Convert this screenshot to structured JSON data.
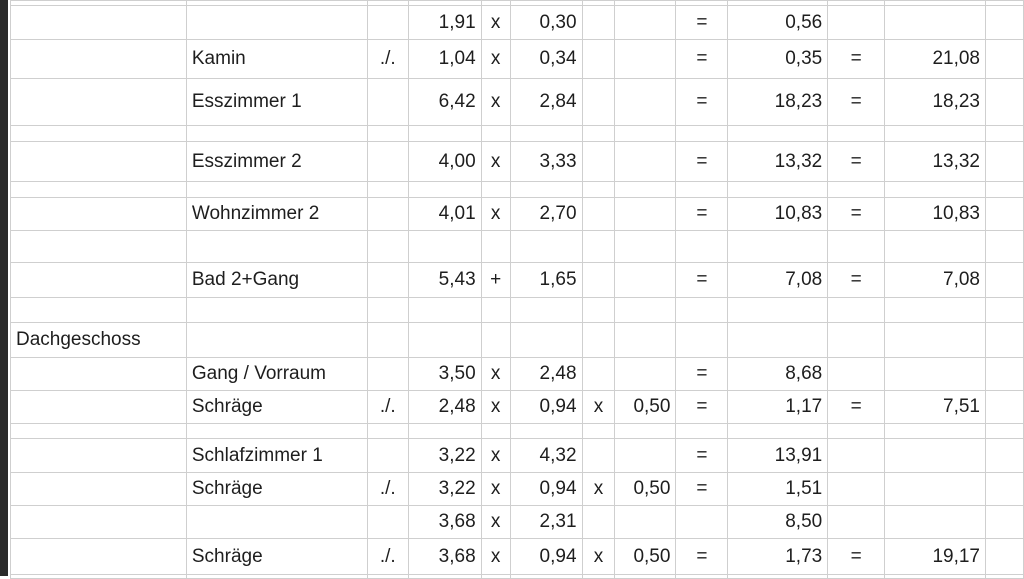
{
  "sheet": {
    "rows": [
      [
        "",
        "",
        "",
        "",
        "",
        "",
        "",
        "",
        "",
        "",
        "",
        "",
        ""
      ],
      [
        "",
        "",
        "",
        "1,91",
        "x",
        "0,30",
        "",
        "",
        "=",
        "0,56",
        "",
        "",
        ""
      ],
      [
        "",
        "Kamin",
        "./.",
        "1,04",
        "x",
        "0,34",
        "",
        "",
        "=",
        "0,35",
        "=",
        "21,08",
        ""
      ],
      [
        "",
        "Esszimmer 1",
        "",
        "6,42",
        "x",
        "2,84",
        "",
        "",
        "=",
        "18,23",
        "=",
        "18,23",
        ""
      ],
      [
        "",
        "",
        "",
        "",
        "",
        "",
        "",
        "",
        "",
        "",
        "",
        "",
        ""
      ],
      [
        "",
        "Esszimmer 2",
        "",
        "4,00",
        "x",
        "3,33",
        "",
        "",
        "=",
        "13,32",
        "=",
        "13,32",
        ""
      ],
      [
        "",
        "",
        "",
        "",
        "",
        "",
        "",
        "",
        "",
        "",
        "",
        "",
        ""
      ],
      [
        "",
        "Wohnzimmer 2",
        "",
        "4,01",
        "x",
        "2,70",
        "",
        "",
        "=",
        "10,83",
        "=",
        "10,83",
        ""
      ],
      [
        "",
        "",
        "",
        "",
        "",
        "",
        "",
        "",
        "",
        "",
        "",
        "",
        ""
      ],
      [
        "",
        "Bad 2+Gang",
        "",
        "5,43",
        "+",
        "1,65",
        "",
        "",
        "=",
        "7,08",
        "=",
        "7,08",
        ""
      ],
      [
        "",
        "",
        "",
        "",
        "",
        "",
        "",
        "",
        "",
        "",
        "",
        "",
        ""
      ],
      [
        "Dachgeschoss",
        "",
        "",
        "",
        "",
        "",
        "",
        "",
        "",
        "",
        "",
        "",
        ""
      ],
      [
        "",
        "Gang / Vorraum",
        "",
        "3,50",
        "x",
        "2,48",
        "",
        "",
        "=",
        "8,68",
        "",
        "",
        ""
      ],
      [
        "",
        "Schräge",
        "./.",
        "2,48",
        "x",
        "0,94",
        "x",
        "0,50",
        "=",
        "1,17",
        "=",
        "7,51",
        ""
      ],
      [
        "",
        "",
        "",
        "",
        "",
        "",
        "",
        "",
        "",
        "",
        "",
        "",
        ""
      ],
      [
        "",
        "Schlafzimmer 1",
        "",
        "3,22",
        "x",
        "4,32",
        "",
        "",
        "=",
        "13,91",
        "",
        "",
        ""
      ],
      [
        "",
        "Schräge",
        "./.",
        "3,22",
        "x",
        "0,94",
        "x",
        "0,50",
        "=",
        "1,51",
        "",
        "",
        ""
      ],
      [
        "",
        "",
        "",
        "3,68",
        "x",
        "2,31",
        "",
        "",
        "",
        "8,50",
        "",
        "",
        ""
      ],
      [
        "",
        "Schräge",
        "./.",
        "3,68",
        "x",
        "0,94",
        "x",
        "0,50",
        "=",
        "1,73",
        "=",
        "19,17",
        ""
      ],
      [
        "",
        "",
        "",
        "",
        "",
        "",
        "",
        "",
        "",
        "",
        "",
        "",
        ""
      ]
    ]
  }
}
